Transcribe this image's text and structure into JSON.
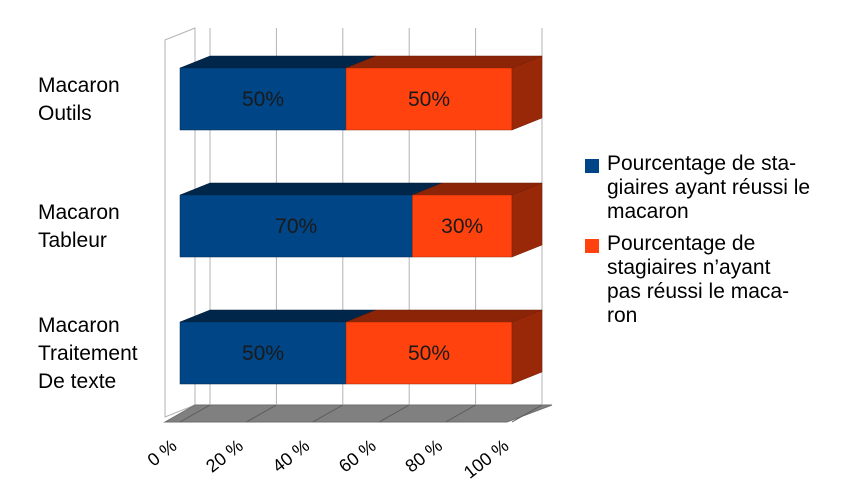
{
  "chart_data": {
    "type": "bar",
    "orientation": "horizontal",
    "stacked": true,
    "percent_stacked": true,
    "three_d": true,
    "categories": [
      "Macaron Outils",
      "Macaron Tableur",
      "Macaron Traitement De texte"
    ],
    "category_label_lines": [
      [
        "Macaron",
        "Outils"
      ],
      [
        "Macaron",
        "Tableur"
      ],
      [
        "Macaron",
        "Traitement",
        "De texte"
      ]
    ],
    "series": [
      {
        "name": "Pourcentage de stagiaires ayant réussi le macaron",
        "values": [
          50,
          70,
          50
        ],
        "data_labels": [
          "50%",
          "70%",
          "50%"
        ],
        "color": "#004586"
      },
      {
        "name": "Pourcentage de stagiaires n’ayant pas réussi le macaron",
        "values": [
          50,
          30,
          50
        ],
        "data_labels": [
          "50%",
          "30%",
          "50%"
        ],
        "color": "#ff420e"
      }
    ],
    "xlim": [
      0,
      100
    ],
    "x_ticks": [
      "0 %",
      "20 %",
      "40 %",
      "60 %",
      "80 %",
      "100 %"
    ],
    "grid": true,
    "legend_position": "right"
  },
  "legend": {
    "items": [
      {
        "lines": [
          "Pourcentage de sta-",
          "giaires ayant réussi le",
          "macaron"
        ],
        "color": "#004586"
      },
      {
        "lines": [
          "Pourcentage de",
          "stagiaires n’ayant",
          "pas réussi le maca-",
          "ron"
        ],
        "color": "#ff420e"
      }
    ]
  }
}
